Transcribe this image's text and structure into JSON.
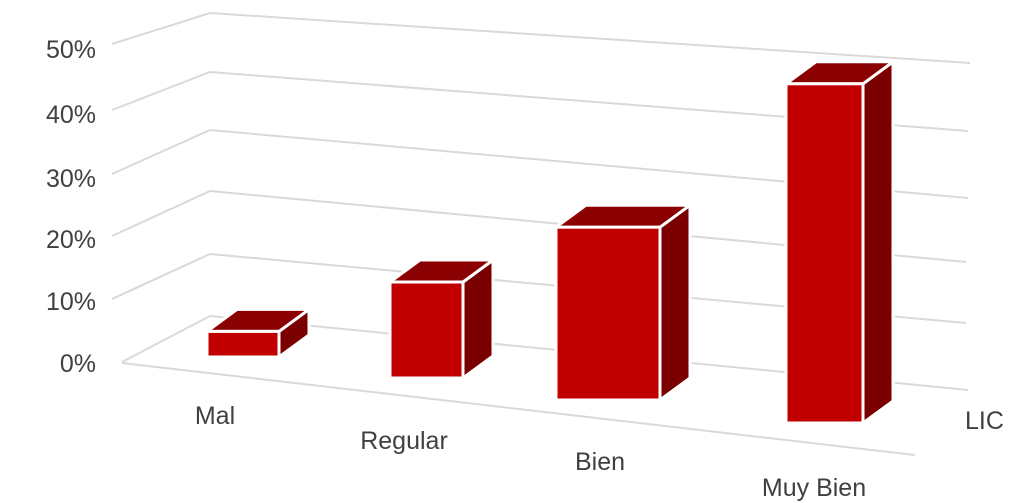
{
  "chart_data": {
    "type": "bar",
    "style": "3d-column",
    "categories": [
      "Mal",
      "Regular",
      "Bien",
      "Muy Bien"
    ],
    "series": [
      {
        "name": "LIC",
        "values": [
          4,
          15,
          27,
          53
        ]
      }
    ],
    "ylim": [
      0,
      50
    ],
    "ytick_labels": [
      "0%",
      "10%",
      "20%",
      "30%",
      "40%",
      "50%"
    ],
    "grid": true,
    "colors": {
      "front": "#C00000",
      "side": "#7A0000",
      "top": "#8B0000",
      "grid": "#D9D9D9",
      "text": "#404040"
    }
  }
}
